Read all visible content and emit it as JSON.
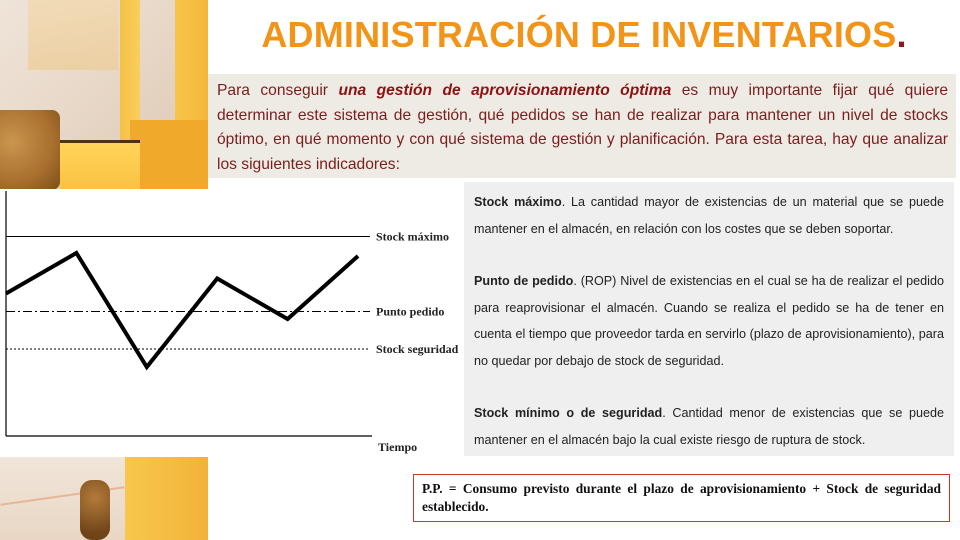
{
  "title": {
    "text": "ADMINISTRACIÓN DE INVENTARIOS",
    "dot": "."
  },
  "intro": {
    "before": "Para conseguir ",
    "emphasis": "una gestión de aprovisionamiento óptima",
    "after": " es muy importante fijar qué quiere determinar este sistema de gestión, qué pedidos se han de realizar para mantener un nivel de stocks óptimo, en qué momento y con qué sistema de gestión y planificación. Para esta tarea, hay que analizar los siguientes indicadores:"
  },
  "chart_data": {
    "type": "line",
    "xlabel": "Tiempo",
    "ylabel": "",
    "reference_lines": [
      {
        "label": "Stock máximo",
        "value": 1.0,
        "style": "solid"
      },
      {
        "label": "Punto pedido",
        "value": 0.5,
        "style": "dash-dot"
      },
      {
        "label": "Stock seguridad",
        "value": 0.25,
        "style": "dotted"
      }
    ],
    "series": [
      {
        "values": [
          0.62,
          0.89,
          0.13,
          0.72,
          0.45,
          0.87
        ]
      }
    ],
    "ylim": [
      -0.33,
      1.25
    ],
    "grid": false,
    "line_color": "#000000"
  },
  "definitions": [
    {
      "term": "Stock máximo",
      "text": ". La cantidad mayor de existencias de un material que se puede mantener en el almacén, en relación con los costes que se deben soportar."
    },
    {
      "term": "Punto de pedido",
      "text": ". (ROP) Nivel de existencias en el cual se ha de realizar el pedido para reaprovisionar el almacén. Cuando se realiza el pedido se ha de tener en cuenta el tiempo que proveedor tarda en servirlo (plazo de aprovisionamiento), para no quedar por debajo de stock de seguridad."
    },
    {
      "term": "Stock mínimo o de seguridad",
      "text": ". Cantidad menor de existencias que se puede mantener en el almacén bajo la cual existe riesgo de ruptura de stock."
    }
  ],
  "formula": {
    "text": "P.P. = Consumo previsto durante el plazo de aprovisionamiento + Stock de seguridad establecido."
  },
  "colors": {
    "title": "#f29417",
    "intro_text": "#7a1d1d",
    "formula_border": "#c0392b"
  }
}
